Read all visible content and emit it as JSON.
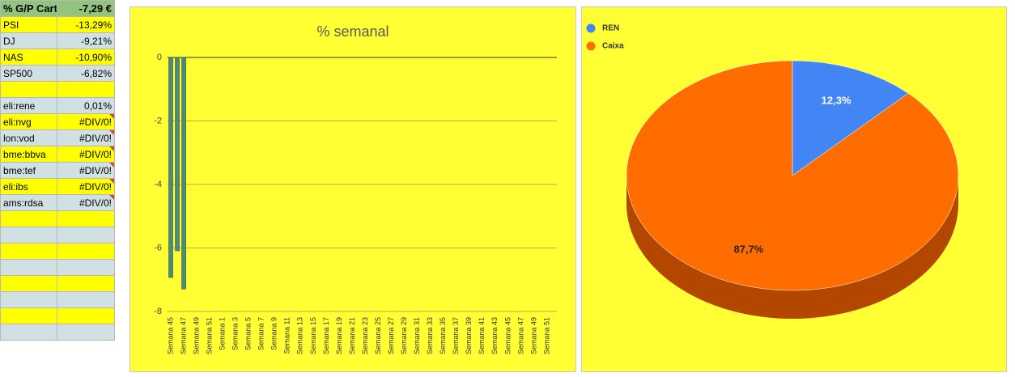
{
  "sheet": {
    "header": [
      "% G/P Cart",
      "-7,29 €"
    ],
    "rows": [
      [
        "PSI",
        "-13,29%"
      ],
      [
        "DJ",
        "-9,21%"
      ],
      [
        "NAS",
        "-10,90%"
      ],
      [
        "SP500",
        "-6,82%"
      ],
      [
        "eli:rene",
        "0,01%"
      ],
      [
        "eli:nvg",
        "#DIV/0!"
      ],
      [
        "lon:vod",
        "#DIV/0!"
      ],
      [
        "bme:bbva",
        "#DIV/0!"
      ],
      [
        "bme:tef",
        "#DIV/0!"
      ],
      [
        "eli:ibs",
        "#DIV/0!"
      ],
      [
        "ams:rdsa",
        "#DIV/0!"
      ]
    ]
  },
  "chart_data": [
    {
      "type": "bar",
      "title": "% semanal",
      "color": "#4f8a78",
      "categories": [
        "Semana 45",
        null,
        "Semana 47",
        null,
        "Semana 49",
        null,
        "Semana 51",
        null,
        "Semana 1",
        null,
        "Semana 3",
        null,
        "Semana 5",
        null,
        "Semana 7",
        null,
        "Semana 9",
        null,
        "Semana 11",
        null,
        "Semana 13",
        null,
        "Semana 15",
        null,
        "Semana 17",
        null,
        "Semana 19",
        null,
        "Semana 21",
        null,
        "Semana 23",
        null,
        "Semana 25",
        null,
        "Semana 27",
        null,
        "Semana 29",
        null,
        "Semana 31",
        null,
        "Semana 33",
        null,
        "Semana 35",
        null,
        "Semana 37",
        null,
        "Semana 39",
        null,
        "Semana 41",
        null,
        "Semana 43",
        null,
        "Semana 45",
        null,
        "Semana 47",
        null,
        "Semana 49",
        null,
        "Semana 51",
        null
      ],
      "values": [
        -6.93,
        -6.09,
        -7.29,
        null,
        null,
        null,
        null,
        null,
        null,
        null,
        null,
        null,
        null,
        null,
        null,
        null,
        null,
        null,
        null,
        null,
        null,
        null,
        null,
        null,
        null,
        null,
        null,
        null,
        null,
        null,
        null,
        null,
        null,
        null,
        null,
        null,
        null,
        null,
        null,
        null,
        null,
        null,
        null,
        null,
        null,
        null,
        null,
        null,
        null,
        null,
        null,
        null,
        null,
        null,
        null,
        null,
        null,
        null,
        null,
        null
      ],
      "ylim": [
        -8,
        0
      ],
      "yticks": [
        0,
        -2,
        -4,
        -6,
        -8
      ],
      "grid": true
    },
    {
      "type": "pie",
      "categories": [
        "REN",
        "Caixa"
      ],
      "values": [
        12.3,
        87.7
      ],
      "value_labels": [
        "12,3%",
        "87,7%"
      ],
      "colors": [
        "#4285f4",
        "#ff6d01"
      ],
      "legend": "top-left"
    }
  ]
}
